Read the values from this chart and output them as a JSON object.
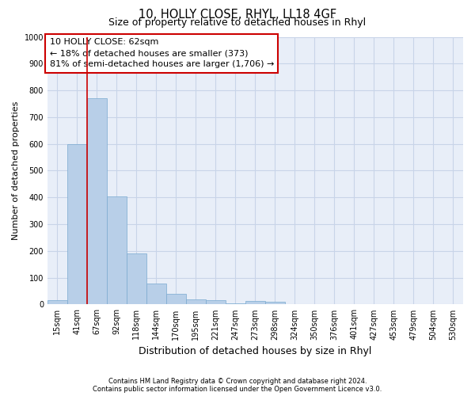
{
  "title1": "10, HOLLY CLOSE, RHYL, LL18 4GF",
  "title2": "Size of property relative to detached houses in Rhyl",
  "xlabel": "Distribution of detached houses by size in Rhyl",
  "ylabel": "Number of detached properties",
  "categories": [
    "15sqm",
    "41sqm",
    "67sqm",
    "92sqm",
    "118sqm",
    "144sqm",
    "170sqm",
    "195sqm",
    "221sqm",
    "247sqm",
    "273sqm",
    "298sqm",
    "324sqm",
    "350sqm",
    "376sqm",
    "401sqm",
    "427sqm",
    "453sqm",
    "479sqm",
    "504sqm",
    "530sqm"
  ],
  "values": [
    15,
    600,
    770,
    405,
    190,
    78,
    40,
    18,
    16,
    5,
    13,
    9,
    0,
    0,
    0,
    0,
    0,
    0,
    0,
    0,
    0
  ],
  "bar_color": "#b8cfe8",
  "bar_edge_color": "#7aaad0",
  "vline_color": "#cc0000",
  "vline_pos": 1.5,
  "annotation_line1": "10 HOLLY CLOSE: 62sqm",
  "annotation_line2": "← 18% of detached houses are smaller (373)",
  "annotation_line3": "81% of semi-detached houses are larger (1,706) →",
  "box_edge_color": "#cc0000",
  "ylim_max": 1000,
  "yticks": [
    0,
    100,
    200,
    300,
    400,
    500,
    600,
    700,
    800,
    900,
    1000
  ],
  "grid_color": "#c8d4e8",
  "bg_color": "#e8eef8",
  "footnote": "Contains HM Land Registry data © Crown copyright and database right 2024.\nContains public sector information licensed under the Open Government Licence v3.0.",
  "title1_fontsize": 10.5,
  "title2_fontsize": 9,
  "ylabel_fontsize": 8,
  "xlabel_fontsize": 9,
  "tick_fontsize": 7,
  "annotation_fontsize": 8,
  "footnote_fontsize": 6
}
